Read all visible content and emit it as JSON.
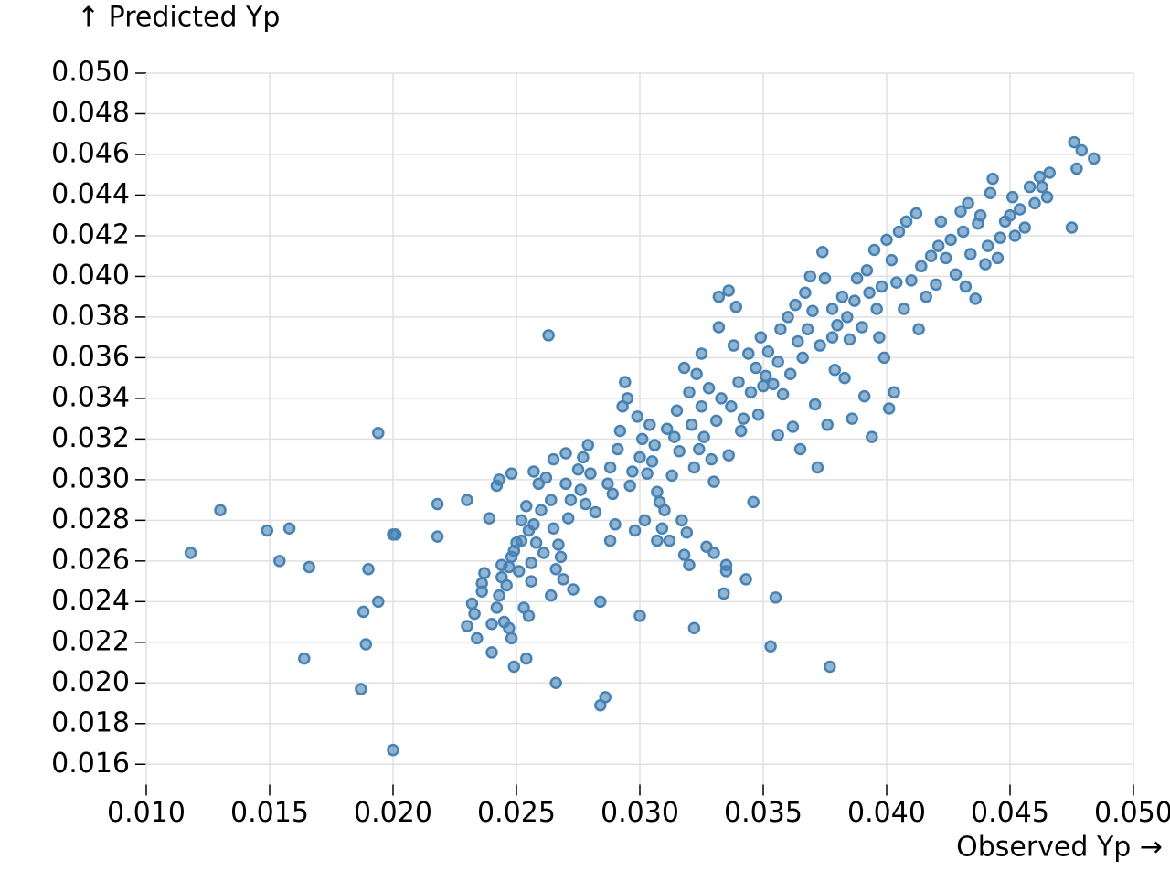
{
  "chart_data": {
    "type": "scatter",
    "x_label": "Observed Yp →",
    "y_label": "↑ Predicted Yp",
    "color": "#4682b4",
    "grid": true,
    "xlim": [
      0.01,
      0.05
    ],
    "ylim": [
      0.015,
      0.05
    ],
    "xticks": [
      {
        "value": 0.01,
        "label": "0.010"
      },
      0.015,
      {
        "value": 0.02,
        "label": "0.020"
      },
      0.025,
      {
        "value": 0.03,
        "label": "0.030"
      },
      0.035,
      {
        "value": 0.04,
        "label": "0.040"
      },
      0.045,
      {
        "value": 0.05,
        "label": "0.050"
      }
    ],
    "yticks": [
      0.016,
      0.018,
      {
        "value": 0.02,
        "label": "0.020"
      },
      0.022,
      0.024,
      0.026,
      0.028,
      {
        "value": 0.03,
        "label": "0.030"
      },
      0.032,
      0.034,
      0.036,
      0.038,
      {
        "value": 0.04,
        "label": "0.040"
      },
      0.042,
      0.044,
      0.046,
      0.048,
      {
        "value": 0.05,
        "label": "0.050"
      }
    ],
    "x": [
      0.0118,
      0.013,
      0.0149,
      0.0158,
      0.0154,
      0.0166,
      0.0164,
      0.0187,
      0.0188,
      0.0189,
      0.019,
      0.0194,
      0.0194,
      0.02,
      0.0201,
      0.02,
      0.0218,
      0.0218,
      0.023,
      0.0263,
      0.023,
      0.0232,
      0.0233,
      0.0234,
      0.0236,
      0.0236,
      0.0237,
      0.0239,
      0.024,
      0.024,
      0.0242,
      0.0242,
      0.0243,
      0.0243,
      0.0244,
      0.0244,
      0.0245,
      0.0246,
      0.0247,
      0.0247,
      0.0248,
      0.0248,
      0.0248,
      0.0249,
      0.0249,
      0.025,
      0.0251,
      0.0252,
      0.0252,
      0.0253,
      0.0254,
      0.0254,
      0.0255,
      0.0255,
      0.0256,
      0.0256,
      0.0257,
      0.0257,
      0.0258,
      0.0259,
      0.026,
      0.0261,
      0.0262,
      0.0264,
      0.0264,
      0.0265,
      0.0265,
      0.0266,
      0.0266,
      0.0267,
      0.0268,
      0.0269,
      0.027,
      0.027,
      0.0271,
      0.0272,
      0.0273,
      0.0275,
      0.0276,
      0.0277,
      0.0278,
      0.0279,
      0.028,
      0.0282,
      0.0284,
      0.0284,
      0.0286,
      0.0287,
      0.0288,
      0.0288,
      0.0289,
      0.029,
      0.0291,
      0.0292,
      0.0293,
      0.0294,
      0.0295,
      0.0296,
      0.0297,
      0.0298,
      0.0299,
      0.03,
      0.03,
      0.0301,
      0.0302,
      0.0303,
      0.0304,
      0.0305,
      0.0306,
      0.0307,
      0.0307,
      0.0308,
      0.0309,
      0.031,
      0.0311,
      0.0312,
      0.0313,
      0.0314,
      0.0315,
      0.0316,
      0.0317,
      0.0318,
      0.0318,
      0.0319,
      0.032,
      0.032,
      0.0321,
      0.0322,
      0.0322,
      0.0323,
      0.0324,
      0.0325,
      0.0325,
      0.0326,
      0.0327,
      0.0328,
      0.0329,
      0.033,
      0.033,
      0.0331,
      0.0332,
      0.0332,
      0.0333,
      0.0334,
      0.0335,
      0.0335,
      0.0336,
      0.0336,
      0.0337,
      0.0338,
      0.0339,
      0.034,
      0.0341,
      0.0342,
      0.0343,
      0.0344,
      0.0345,
      0.0346,
      0.0347,
      0.0348,
      0.0349,
      0.035,
      0.0351,
      0.0352,
      0.0353,
      0.0354,
      0.0355,
      0.0356,
      0.0356,
      0.0357,
      0.0358,
      0.036,
      0.0361,
      0.0362,
      0.0363,
      0.0364,
      0.0365,
      0.0366,
      0.0367,
      0.0368,
      0.0369,
      0.037,
      0.0371,
      0.0372,
      0.0373,
      0.0374,
      0.0375,
      0.0376,
      0.0377,
      0.0378,
      0.0378,
      0.0379,
      0.038,
      0.0382,
      0.0383,
      0.0384,
      0.0385,
      0.0386,
      0.0387,
      0.0388,
      0.039,
      0.0391,
      0.0392,
      0.0393,
      0.0394,
      0.0395,
      0.0396,
      0.0397,
      0.0398,
      0.0399,
      0.04,
      0.0401,
      0.0402,
      0.0403,
      0.0404,
      0.0405,
      0.0407,
      0.0408,
      0.041,
      0.0412,
      0.0413,
      0.0414,
      0.0416,
      0.0418,
      0.042,
      0.0421,
      0.0422,
      0.0424,
      0.0426,
      0.0428,
      0.043,
      0.0431,
      0.0432,
      0.0433,
      0.0434,
      0.0436,
      0.0437,
      0.0438,
      0.044,
      0.0441,
      0.0442,
      0.0443,
      0.0445,
      0.0446,
      0.0448,
      0.045,
      0.0451,
      0.0452,
      0.0454,
      0.0456,
      0.0458,
      0.046,
      0.0462,
      0.0463,
      0.0465,
      0.0466,
      0.0475,
      0.0476,
      0.0477,
      0.0479,
      0.0484
    ],
    "values": [
      0.0264,
      0.0285,
      0.0275,
      0.0276,
      0.026,
      0.0257,
      0.0212,
      0.0197,
      0.0235,
      0.0219,
      0.0256,
      0.024,
      0.0323,
      0.0273,
      0.0273,
      0.0167,
      0.0288,
      0.0272,
      0.029,
      0.0371,
      0.0228,
      0.0239,
      0.0234,
      0.0222,
      0.0245,
      0.0249,
      0.0254,
      0.0281,
      0.0229,
      0.0215,
      0.0237,
      0.0297,
      0.03,
      0.0243,
      0.0258,
      0.0252,
      0.023,
      0.0248,
      0.0257,
      0.0227,
      0.0222,
      0.0262,
      0.0303,
      0.0265,
      0.0208,
      0.0269,
      0.0255,
      0.028,
      0.027,
      0.0237,
      0.0212,
      0.0287,
      0.0275,
      0.0233,
      0.0259,
      0.025,
      0.0304,
      0.0278,
      0.0269,
      0.0298,
      0.0285,
      0.0264,
      0.0301,
      0.0243,
      0.029,
      0.031,
      0.0276,
      0.0256,
      0.02,
      0.0268,
      0.0262,
      0.0251,
      0.0313,
      0.0298,
      0.0281,
      0.029,
      0.0246,
      0.0305,
      0.0295,
      0.0311,
      0.0288,
      0.0317,
      0.0303,
      0.0284,
      0.024,
      0.0189,
      0.0193,
      0.0298,
      0.027,
      0.0306,
      0.0293,
      0.0278,
      0.0315,
      0.0324,
      0.0336,
      0.0348,
      0.034,
      0.0297,
      0.0304,
      0.0275,
      0.0331,
      0.0233,
      0.0311,
      0.032,
      0.028,
      0.0303,
      0.0327,
      0.0309,
      0.0317,
      0.027,
      0.0294,
      0.0289,
      0.0276,
      0.0285,
      0.0325,
      0.027,
      0.0302,
      0.0321,
      0.0334,
      0.0314,
      0.028,
      0.0355,
      0.0263,
      0.0274,
      0.0258,
      0.0343,
      0.0327,
      0.0227,
      0.0306,
      0.0352,
      0.0315,
      0.0362,
      0.0336,
      0.0321,
      0.0267,
      0.0345,
      0.031,
      0.0264,
      0.0299,
      0.0329,
      0.0375,
      0.039,
      0.034,
      0.0244,
      0.0255,
      0.0258,
      0.0312,
      0.0393,
      0.0336,
      0.0366,
      0.0385,
      0.0348,
      0.0324,
      0.033,
      0.0251,
      0.0362,
      0.0343,
      0.0289,
      0.0355,
      0.0332,
      0.037,
      0.0346,
      0.0351,
      0.0363,
      0.0218,
      0.0347,
      0.0242,
      0.0322,
      0.0358,
      0.0374,
      0.0342,
      0.038,
      0.0352,
      0.0326,
      0.0386,
      0.0368,
      0.0315,
      0.036,
      0.0392,
      0.0374,
      0.04,
      0.0383,
      0.0337,
      0.0306,
      0.0366,
      0.0412,
      0.0399,
      0.0327,
      0.0208,
      0.037,
      0.0384,
      0.0354,
      0.0376,
      0.039,
      0.035,
      0.038,
      0.0369,
      0.033,
      0.0388,
      0.0399,
      0.0375,
      0.0341,
      0.0403,
      0.0392,
      0.0321,
      0.0413,
      0.0384,
      0.037,
      0.0395,
      0.036,
      0.0418,
      0.0335,
      0.0408,
      0.0343,
      0.0397,
      0.0422,
      0.0384,
      0.0427,
      0.0398,
      0.0431,
      0.0374,
      0.0405,
      0.039,
      0.041,
      0.0396,
      0.0415,
      0.0427,
      0.0409,
      0.0418,
      0.0401,
      0.0432,
      0.0422,
      0.0395,
      0.0436,
      0.0411,
      0.0389,
      0.0426,
      0.043,
      0.0406,
      0.0415,
      0.0441,
      0.0448,
      0.0409,
      0.0419,
      0.0427,
      0.043,
      0.0439,
      0.042,
      0.0433,
      0.0424,
      0.0444,
      0.0436,
      0.0449,
      0.0444,
      0.0439,
      0.0451,
      0.0424,
      0.0466,
      0.0453,
      0.0462,
      0.0458
    ]
  }
}
